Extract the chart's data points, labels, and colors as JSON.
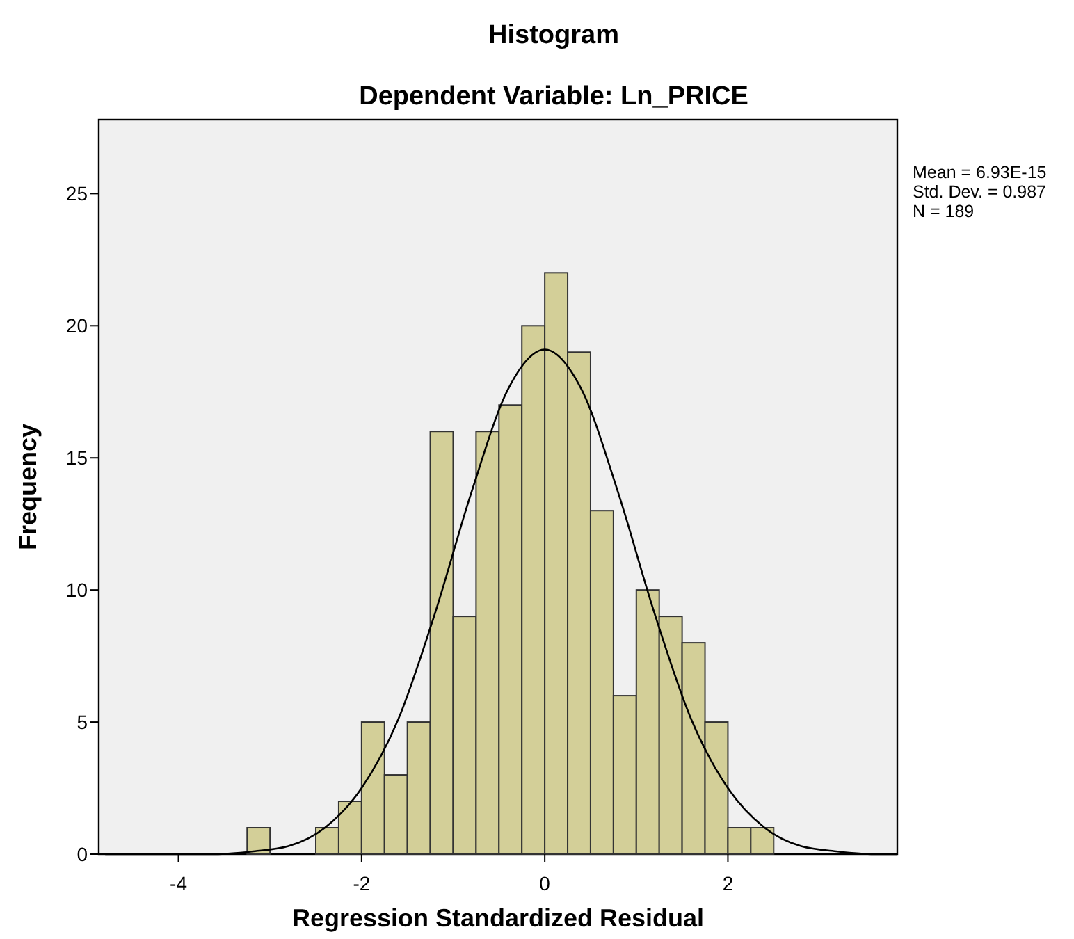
{
  "chart_data": {
    "type": "histogram",
    "title": "Histogram",
    "subtitle": "Dependent Variable: Ln_PRICE",
    "xlabel": "Regression Standardized Residual",
    "ylabel": "Frequency",
    "bins": [
      -3.25,
      -3.0,
      -2.75,
      -2.5,
      -2.25,
      -2.0,
      -1.75,
      -1.5,
      -1.25,
      -1.0,
      -0.75,
      -0.5,
      -0.25,
      0,
      0.25,
      0.5,
      0.75,
      1.0,
      1.25,
      1.5,
      1.75,
      2.0,
      2.25,
      2.5
    ],
    "values": [
      1,
      0,
      0,
      1,
      2,
      5,
      3,
      5,
      16,
      9,
      16,
      17,
      20,
      22,
      19,
      13,
      6,
      10,
      9,
      8,
      5,
      1,
      1
    ],
    "color": "#d3cf98",
    "series": [
      {
        "type": "line",
        "color": "#000000",
        "x": [
          -4.8,
          -4.4,
          -4.0,
          -3.6,
          -3.2,
          -2.8,
          -2.4,
          -2.0,
          -1.6,
          -1.2,
          -0.8,
          -0.4,
          0,
          0.4,
          0.8,
          1.2,
          1.6,
          2.0,
          2.4,
          2.8,
          3.2,
          3.6,
          3.85
        ],
        "values": [
          0,
          0,
          0,
          0,
          0.1,
          0.3,
          1.0,
          2.5,
          5.1,
          9.1,
          13.7,
          17.6,
          19.1,
          17.6,
          13.7,
          9.1,
          5.1,
          2.5,
          1.0,
          0.3,
          0.1,
          0,
          0
        ]
      }
    ],
    "xlim": [
      -4.87,
      3.85
    ],
    "ylim": [
      0,
      27.8
    ],
    "xticks": [
      -4,
      -2,
      0,
      2
    ],
    "yticks": [
      0,
      5,
      10,
      15,
      20,
      25
    ],
    "grid": false,
    "annotations": [
      "Mean = 6.93E-15",
      "Std. Dev. = 0.987",
      "N = 189"
    ]
  }
}
